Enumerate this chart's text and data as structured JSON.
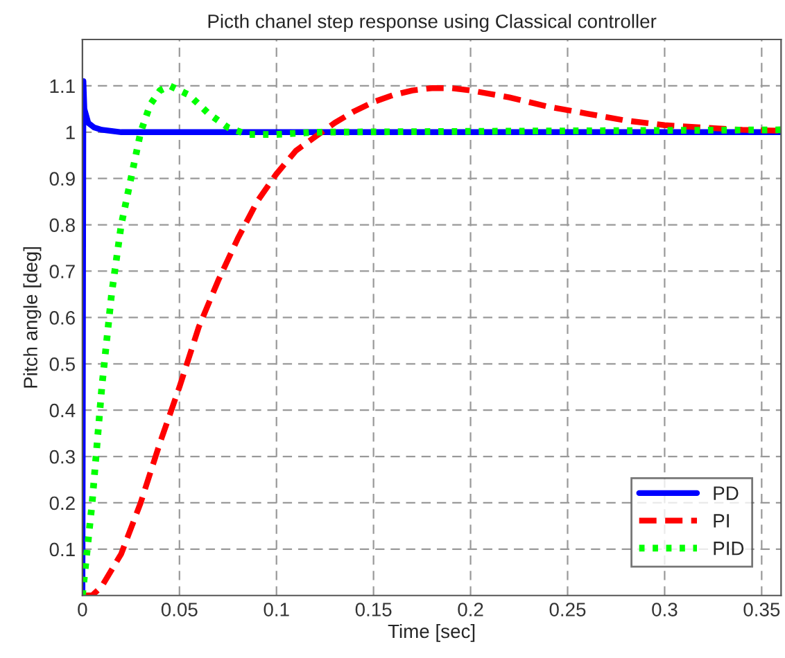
{
  "chart_data": {
    "type": "line",
    "title": "Picth chanel step response using Classical controller",
    "xlabel": "Time [sec]",
    "ylabel": "Pitch angle [deg]",
    "series": [
      {
        "name": "PD",
        "color": "#0000ff",
        "line_style": "solid",
        "x": [
          0,
          0.0005,
          0.001,
          0.003,
          0.006,
          0.01,
          0.02,
          0.36
        ],
        "values": [
          0,
          1.11,
          1.05,
          1.02,
          1.01,
          1.005,
          1.0,
          1.0
        ]
      },
      {
        "name": "PI",
        "color": "#ff0000",
        "line_style": "dashed",
        "x": [
          0,
          0.005,
          0.01,
          0.02,
          0.03,
          0.04,
          0.05,
          0.06,
          0.07,
          0.08,
          0.09,
          0.1,
          0.11,
          0.12,
          0.13,
          0.14,
          0.15,
          0.16,
          0.17,
          0.18,
          0.19,
          0.2,
          0.22,
          0.24,
          0.26,
          0.28,
          0.3,
          0.32,
          0.34,
          0.36
        ],
        "values": [
          0,
          0,
          0.02,
          0.09,
          0.2,
          0.33,
          0.45,
          0.58,
          0.68,
          0.77,
          0.85,
          0.91,
          0.96,
          0.99,
          1.02,
          1.045,
          1.065,
          1.08,
          1.09,
          1.095,
          1.095,
          1.09,
          1.075,
          1.055,
          1.04,
          1.025,
          1.015,
          1.01,
          1.005,
          1.003
        ]
      },
      {
        "name": "PID",
        "color": "#00ff00",
        "line_style": "dotted",
        "x": [
          0,
          0.005,
          0.01,
          0.015,
          0.02,
          0.025,
          0.03,
          0.035,
          0.04,
          0.045,
          0.055,
          0.065,
          0.075,
          0.085,
          0.1,
          0.12,
          0.36
        ],
        "values": [
          0,
          0.2,
          0.45,
          0.65,
          0.8,
          0.9,
          1.0,
          1.06,
          1.09,
          1.1,
          1.08,
          1.04,
          1.01,
          0.995,
          0.995,
          1.0,
          1.005
        ]
      }
    ],
    "xlim": [
      0,
      0.36
    ],
    "ylim": [
      0,
      1.2
    ],
    "xticks": [
      0,
      0.05,
      0.1,
      0.15,
      0.2,
      0.25,
      0.3,
      0.35
    ],
    "yticks": [
      0.1,
      0.2,
      0.3,
      0.4,
      0.5,
      0.6,
      0.7,
      0.8,
      0.9,
      1,
      1.1
    ],
    "grid": true,
    "legend": "bottom right"
  }
}
